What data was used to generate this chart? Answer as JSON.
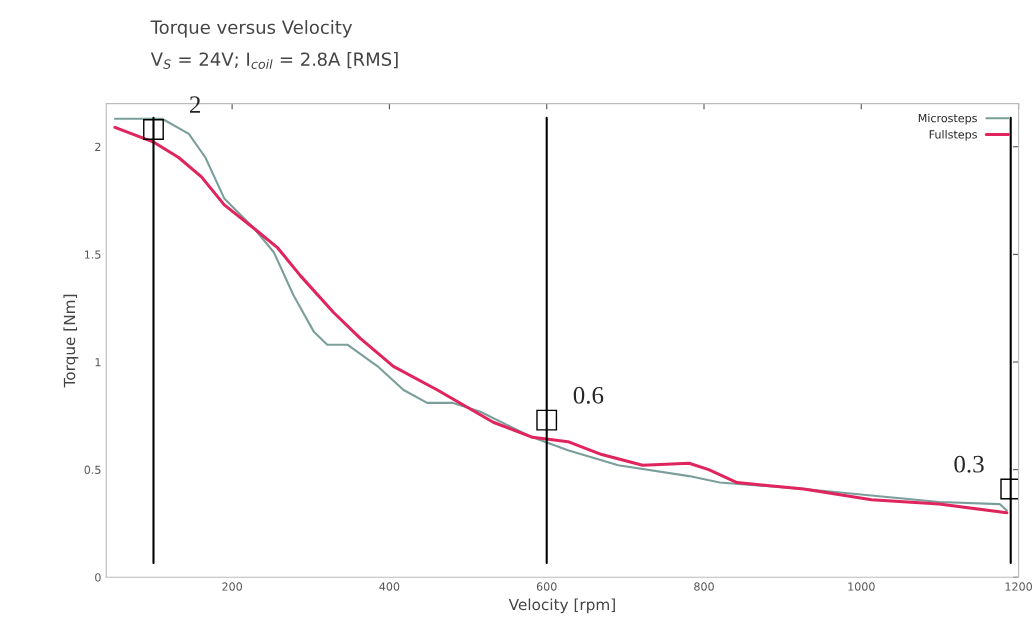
{
  "chart_data": {
    "type": "line",
    "title": "Torque versus Velocity",
    "subtitle": "V$_{S}$ = 24V; I$_{coil}$ = 2.8A [RMS]",
    "xlabel": "Velocity [rpm]",
    "ylabel": "Torque [Nm]",
    "xlim": [
      40,
      1200
    ],
    "ylim": [
      0,
      2.2
    ],
    "xticks": [
      200,
      400,
      600,
      800,
      1000,
      1200
    ],
    "yticks": [
      0,
      0.5,
      1,
      1.5,
      2
    ],
    "legend": "top right",
    "grid": false,
    "marker": "none",
    "line_style": "solid",
    "series": [
      {
        "name": "Microsteps",
        "color": "#7a9e9a",
        "x": [
          51,
          111,
          145,
          166,
          190,
          228,
          253,
          278,
          304,
          321,
          347,
          385,
          418,
          448,
          481,
          515,
          582,
          627,
          691,
          781,
          820,
          927,
          1099,
          1176,
          1185
        ],
        "values": [
          2.13,
          2.13,
          2.06,
          1.95,
          1.76,
          1.62,
          1.51,
          1.31,
          1.14,
          1.08,
          1.08,
          0.98,
          0.87,
          0.81,
          0.81,
          0.77,
          0.65,
          0.59,
          0.52,
          0.47,
          0.44,
          0.41,
          0.35,
          0.34,
          0.31
        ]
      },
      {
        "name": "Fullsteps",
        "color": "#e0245e",
        "x": [
          51,
          101,
          132,
          161,
          190,
          228,
          258,
          287,
          329,
          363,
          405,
          461,
          499,
          532,
          582,
          627,
          670,
          722,
          781,
          806,
          842,
          927,
          1013,
          1099,
          1185
        ],
        "values": [
          2.09,
          2.02,
          1.95,
          1.86,
          1.73,
          1.62,
          1.53,
          1.4,
          1.23,
          1.11,
          0.98,
          0.87,
          0.79,
          0.72,
          0.65,
          0.63,
          0.57,
          0.52,
          0.53,
          0.5,
          0.44,
          0.41,
          0.36,
          0.34,
          0.3
        ]
      }
    ],
    "ref_lines": [
      {
        "axis": "x",
        "value": 100,
        "color": "#000000"
      },
      {
        "axis": "x",
        "value": 600,
        "color": "#000000"
      },
      {
        "axis": "x",
        "value": 1190,
        "color": "#000000"
      }
    ],
    "annotations": [
      {
        "text": "2",
        "x": 100,
        "y": 2.08
      },
      {
        "text": "0.6",
        "x": 600,
        "y": 0.73
      },
      {
        "text": "0.3",
        "x": 1190,
        "y": 0.41
      }
    ]
  }
}
